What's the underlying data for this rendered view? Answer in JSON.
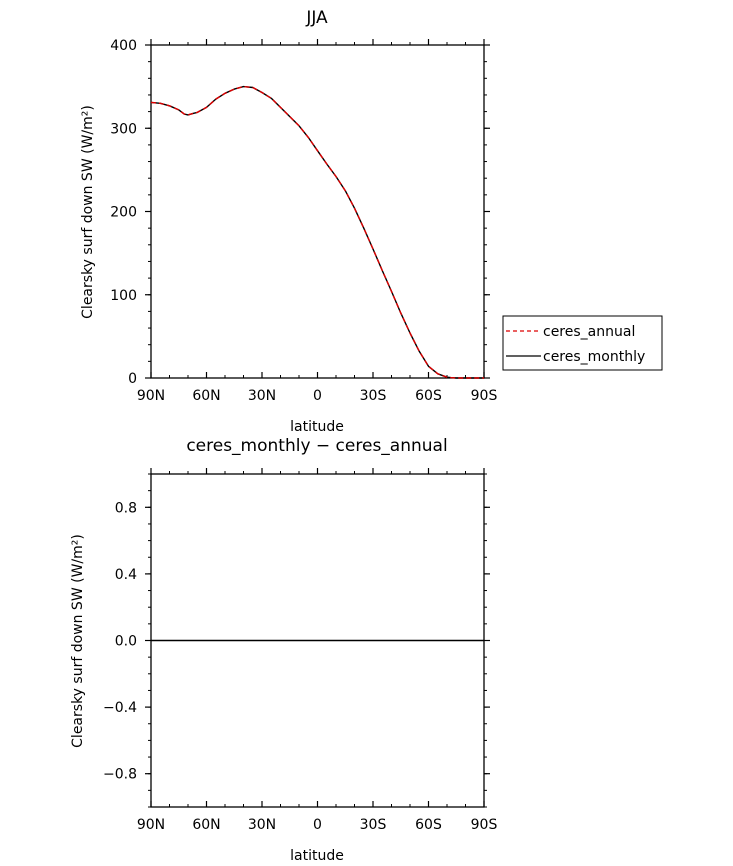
{
  "chart_data": [
    {
      "type": "line",
      "title": "JJA",
      "xlabel": "latitude",
      "ylabel": "Clearsky surf down SW (W/m²)",
      "xlim": [
        90,
        -90
      ],
      "ylim": [
        0,
        400
      ],
      "x_ticks": [
        90,
        60,
        30,
        0,
        -30,
        -60,
        -90
      ],
      "x_tick_labels": [
        "90N",
        "60N",
        "30N",
        "0",
        "30S",
        "60S",
        "90S"
      ],
      "y_ticks": [
        0,
        100,
        200,
        300,
        400
      ],
      "y_tick_labels": [
        "0",
        "100",
        "200",
        "300",
        "400"
      ],
      "grid": false,
      "legend": "right",
      "x": [
        90,
        85,
        80,
        75,
        72,
        70,
        67,
        65,
        60,
        55,
        50,
        45,
        40,
        35,
        30,
        25,
        20,
        15,
        10,
        5,
        0,
        -5,
        -10,
        -15,
        -20,
        -25,
        -30,
        -35,
        -40,
        -45,
        -50,
        -55,
        -60,
        -65,
        -70,
        -72,
        -75,
        -80,
        -85,
        -90
      ],
      "series": [
        {
          "name": "ceres_annual",
          "color": "#dd0000",
          "dash": "dashed",
          "values": [
            331,
            330,
            327,
            322,
            317,
            316,
            318,
            319,
            325,
            335,
            342,
            347,
            350,
            349,
            343,
            336,
            325,
            314,
            303,
            289,
            273,
            257,
            242,
            225,
            204,
            180,
            155,
            129,
            104,
            78,
            54,
            32,
            14,
            5,
            1,
            0.5,
            0,
            0,
            0,
            0
          ]
        },
        {
          "name": "ceres_monthly",
          "color": "#000000",
          "dash": "solid",
          "values": [
            331,
            330,
            327,
            322,
            317,
            316,
            318,
            319,
            325,
            335,
            342,
            347,
            350,
            349,
            343,
            336,
            325,
            314,
            303,
            289,
            273,
            257,
            242,
            225,
            204,
            180,
            155,
            129,
            104,
            78,
            54,
            32,
            14,
            5,
            1,
            0.5,
            0,
            0,
            0,
            0
          ]
        }
      ]
    },
    {
      "type": "line",
      "title": "ceres_monthly − ceres_annual",
      "xlabel": "latitude",
      "ylabel": "Clearsky surf down SW (W/m²)",
      "xlim": [
        90,
        -90
      ],
      "ylim": [
        -1,
        1
      ],
      "x_ticks": [
        90,
        60,
        30,
        0,
        -30,
        -60,
        -90
      ],
      "x_tick_labels": [
        "90N",
        "60N",
        "30N",
        "0",
        "30S",
        "60S",
        "90S"
      ],
      "y_ticks": [
        -0.8,
        -0.4,
        0.0,
        0.4,
        0.8
      ],
      "y_tick_labels": [
        "−0.8",
        "−0.4",
        "0.0",
        "0.4",
        "0.8"
      ],
      "grid": false,
      "x": [
        90,
        -90
      ],
      "series": [
        {
          "color": "#000000",
          "dash": "solid",
          "values": [
            0,
            0
          ]
        }
      ]
    }
  ]
}
